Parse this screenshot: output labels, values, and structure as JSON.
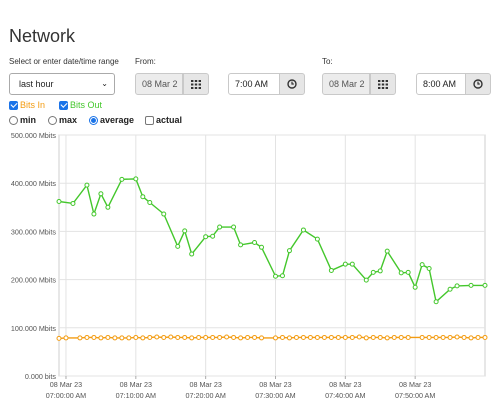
{
  "page": {
    "title": "Network"
  },
  "range": {
    "label": "Select or enter date/time range",
    "selected": "last hour",
    "from_label": "From:",
    "from_date": "08 Mar 2",
    "from_time": "7:00 AM",
    "to_label": "To:",
    "to_date": "08 Mar 2",
    "to_time": "8:00 AM"
  },
  "series_toggles": [
    {
      "label": "Bits In",
      "checked": true,
      "color": "#f39c12"
    },
    {
      "label": "Bits Out",
      "checked": true,
      "color": "#44c72c"
    }
  ],
  "aggregation": [
    {
      "label": "min",
      "selected": false
    },
    {
      "label": "max",
      "selected": false
    },
    {
      "label": "average",
      "selected": true
    }
  ],
  "actual": {
    "label": "actual",
    "checked": false
  },
  "icons": {
    "calendar": "calendar-icon",
    "clock": "clock-icon",
    "dropdown": "chevron-down-icon"
  },
  "chart_data": {
    "type": "line",
    "ylim": [
      0,
      500
    ],
    "y_ticks": [
      {
        "value": 0,
        "label": "0.000 bits"
      },
      {
        "value": 100,
        "label": "100.000 Mbits"
      },
      {
        "value": 200,
        "label": "200.000 Mbits"
      },
      {
        "value": 300,
        "label": "300.000 Mbits"
      },
      {
        "value": 400,
        "label": "400.000 Mbits"
      },
      {
        "value": 500,
        "label": "500.000 Mbits"
      }
    ],
    "xlim": [
      -1,
      60
    ],
    "x_ticks": [
      {
        "value": 0,
        "date": "08 Mar 23",
        "time": "07:00:00 AM"
      },
      {
        "value": 10,
        "date": "08 Mar 23",
        "time": "07:10:00 AM"
      },
      {
        "value": 20,
        "date": "08 Mar 23",
        "time": "07:20:00 AM"
      },
      {
        "value": 30,
        "date": "08 Mar 23",
        "time": "07:30:00 AM"
      },
      {
        "value": 40,
        "date": "08 Mar 23",
        "time": "07:40:00 AM"
      },
      {
        "value": 50,
        "date": "08 Mar 23",
        "time": "07:50:00 AM"
      }
    ],
    "grid": true,
    "series": [
      {
        "name": "Bits Out",
        "color": "#44c72c",
        "x": [
          -1,
          1,
          3,
          4,
          5,
          6,
          8,
          10,
          11,
          12,
          14,
          16,
          17,
          18,
          20,
          21,
          22,
          24,
          25,
          27,
          28,
          30,
          31,
          32,
          34,
          36,
          38,
          40,
          41,
          43,
          44,
          45,
          46,
          48,
          49,
          50,
          51,
          52,
          53,
          55,
          56,
          58,
          60
        ],
        "values": [
          362,
          358,
          396,
          336,
          378,
          350,
          408,
          409,
          372,
          360,
          336,
          269,
          301,
          253,
          289,
          290,
          309,
          309,
          272,
          277,
          267,
          207,
          208,
          260,
          303,
          284,
          219,
          232,
          232,
          199,
          215,
          218,
          259,
          214,
          215,
          184,
          231,
          223,
          154,
          180,
          187,
          188,
          188
        ]
      },
      {
        "name": "Bits In",
        "color": "#f39c12",
        "x": [
          -1,
          0,
          2,
          3,
          4,
          5,
          6,
          7,
          8,
          9,
          10,
          11,
          12,
          13,
          14,
          15,
          16,
          17,
          18,
          19,
          20,
          21,
          22,
          23,
          24,
          25,
          26,
          27,
          28,
          30,
          31,
          32,
          33,
          34,
          35,
          36,
          37,
          38,
          39,
          40,
          41,
          42,
          43,
          44,
          45,
          46,
          47,
          48,
          49,
          51,
          52,
          53,
          54,
          55,
          56,
          57,
          58,
          59,
          60
        ],
        "values": [
          78,
          79,
          79,
          80,
          80,
          79,
          80,
          79,
          79,
          79,
          80,
          79,
          80,
          81,
          80,
          81,
          80,
          80,
          79,
          80,
          80,
          80,
          80,
          81,
          80,
          79,
          80,
          80,
          79,
          79,
          80,
          79,
          80,
          80,
          80,
          80,
          80,
          80,
          80,
          80,
          80,
          81,
          79,
          80,
          80,
          79,
          80,
          80,
          80,
          80,
          80,
          80,
          80,
          80,
          81,
          80,
          79,
          80,
          80
        ]
      }
    ]
  }
}
